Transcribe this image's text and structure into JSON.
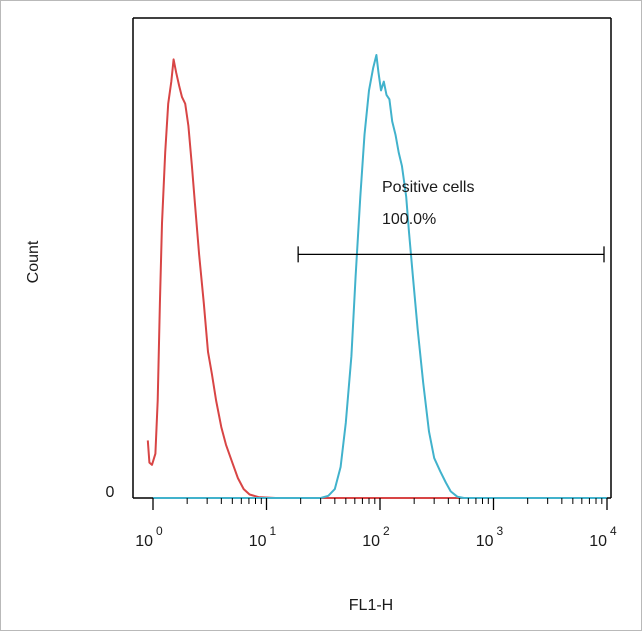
{
  "chart_data": {
    "type": "area",
    "xlabel": "FL1-H",
    "ylabel": "Count",
    "x_scale": "log",
    "xlim": [
      0.9,
      10000
    ],
    "ylim": [
      0,
      100
    ],
    "x_ticks": [
      {
        "base": "10",
        "exp": "0",
        "value": 1
      },
      {
        "base": "10",
        "exp": "1",
        "value": 10
      },
      {
        "base": "10",
        "exp": "2",
        "value": 100
      },
      {
        "base": "10",
        "exp": "3",
        "value": 1000
      },
      {
        "base": "10",
        "exp": "4",
        "value": 10000
      }
    ],
    "y_tick_label": "0",
    "grid": false,
    "series": [
      {
        "color": "#d84545",
        "points": [
          [
            0.9,
            13
          ],
          [
            0.93,
            8
          ],
          [
            0.98,
            7.5
          ],
          [
            1.05,
            10
          ],
          [
            1.1,
            22
          ],
          [
            1.15,
            44
          ],
          [
            1.2,
            62
          ],
          [
            1.28,
            78
          ],
          [
            1.36,
            89
          ],
          [
            1.45,
            94
          ],
          [
            1.52,
            99
          ],
          [
            1.6,
            96
          ],
          [
            1.7,
            93
          ],
          [
            1.8,
            90.5
          ],
          [
            1.92,
            89
          ],
          [
            2.05,
            84
          ],
          [
            2.2,
            75
          ],
          [
            2.35,
            66
          ],
          [
            2.55,
            55
          ],
          [
            2.8,
            44
          ],
          [
            3.05,
            33
          ],
          [
            3.3,
            28
          ],
          [
            3.6,
            22
          ],
          [
            4.0,
            16
          ],
          [
            4.4,
            12
          ],
          [
            5.0,
            8
          ],
          [
            5.6,
            4.5
          ],
          [
            6.3,
            2
          ],
          [
            7.1,
            0.8
          ],
          [
            8.5,
            0.2
          ],
          [
            12,
            0
          ],
          [
            100,
            0
          ],
          [
            500,
            0
          ]
        ]
      },
      {
        "color": "#41b2cc",
        "points": [
          [
            1,
            0
          ],
          [
            30,
            0
          ],
          [
            35,
            0.5
          ],
          [
            40,
            2
          ],
          [
            45,
            7
          ],
          [
            50,
            17
          ],
          [
            56,
            32
          ],
          [
            61,
            50
          ],
          [
            67,
            68
          ],
          [
            73,
            82
          ],
          [
            80,
            92
          ],
          [
            87,
            97
          ],
          [
            93,
            100
          ],
          [
            97,
            96
          ],
          [
            102,
            92
          ],
          [
            108,
            94
          ],
          [
            114,
            91
          ],
          [
            121,
            90
          ],
          [
            128,
            85
          ],
          [
            137,
            82
          ],
          [
            146,
            78
          ],
          [
            156,
            75
          ],
          [
            170,
            68
          ],
          [
            180,
            60
          ],
          [
            195,
            50
          ],
          [
            215,
            38
          ],
          [
            240,
            26
          ],
          [
            270,
            15
          ],
          [
            300,
            9
          ],
          [
            340,
            6
          ],
          [
            380,
            3.5
          ],
          [
            420,
            1.5
          ],
          [
            480,
            0.3
          ],
          [
            550,
            0
          ],
          [
            10000,
            0
          ]
        ]
      }
    ],
    "gate": {
      "label_line1": "Positive cells",
      "label_line2": "100.0%",
      "x_start": 19,
      "x_end": 10000,
      "y_level": 55
    }
  }
}
